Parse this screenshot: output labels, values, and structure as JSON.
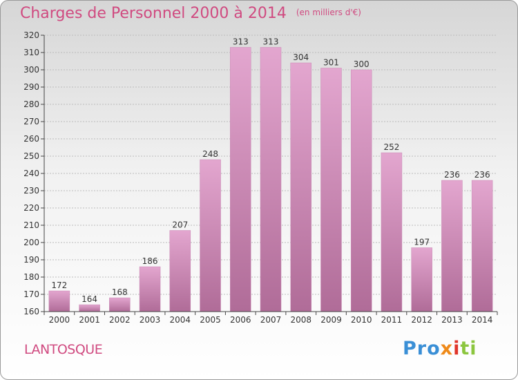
{
  "header": {
    "title": "Charges de Personnel 2000 à 2014",
    "unit": "(en milliers d'€)"
  },
  "footer": {
    "town": "LANTOSQUE",
    "brand": [
      "Pro",
      "x",
      "i",
      "ti"
    ]
  },
  "colors": {
    "title": "#d04a80",
    "bar_top": "#e3a6cf",
    "bar_bottom": "#b06c98",
    "grid": "#bbbbbb"
  },
  "chart_data": {
    "type": "bar",
    "title": "Charges de Personnel 2000 à 2014",
    "subtitle": "(en milliers d'€)",
    "categories": [
      "2000",
      "2001",
      "2002",
      "2003",
      "2004",
      "2005",
      "2006",
      "2007",
      "2008",
      "2009",
      "2010",
      "2011",
      "2012",
      "2013",
      "2014"
    ],
    "values": [
      172,
      164,
      168,
      186,
      207,
      248,
      313,
      313,
      304,
      301,
      300,
      252,
      197,
      236,
      236
    ],
    "ylim": [
      160,
      320
    ],
    "yticks": [
      160,
      170,
      180,
      190,
      200,
      210,
      220,
      230,
      240,
      250,
      260,
      270,
      280,
      290,
      300,
      310,
      320
    ],
    "grid": true
  }
}
